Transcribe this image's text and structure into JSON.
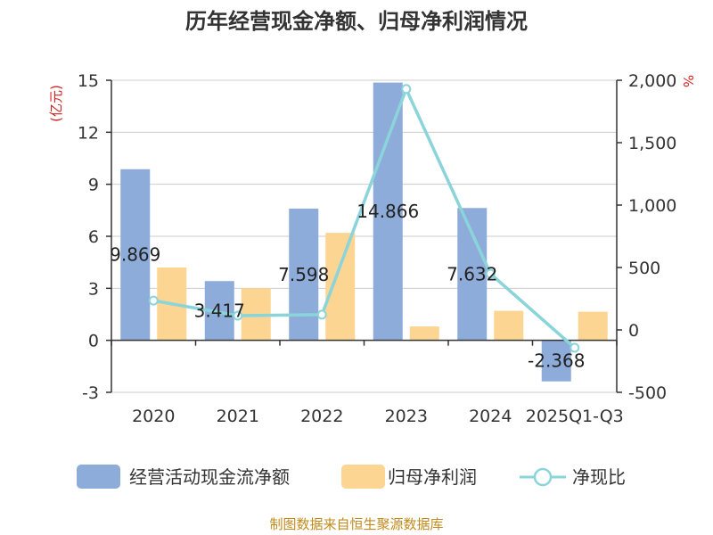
{
  "chart_data": {
    "type": "bar",
    "title": "历年经营现金净额、归母净利润情况",
    "categories": [
      "2020",
      "2021",
      "2022",
      "2023",
      "2024",
      "2025Q1-Q3"
    ],
    "series": [
      {
        "name": "经营活动现金流净额",
        "type": "bar",
        "axis": "left",
        "color": "#8eacd9",
        "values": [
          9.869,
          3.417,
          7.598,
          14.866,
          7.632,
          -2.368
        ]
      },
      {
        "name": "归母净利润",
        "type": "bar",
        "axis": "left",
        "color": "#fdd592",
        "values": [
          4.2,
          3.0,
          6.2,
          0.8,
          1.7,
          1.65
        ]
      },
      {
        "name": "净现比",
        "type": "line",
        "axis": "right",
        "color": "#8ad4da",
        "values": [
          235,
          114,
          122,
          1930,
          450,
          -143
        ]
      }
    ],
    "data_labels": [
      "9.869",
      "3.417",
      "7.598",
      "14.866",
      "7.632",
      "-2.368"
    ],
    "y_left": {
      "label": "(亿元)",
      "min": -3,
      "max": 15,
      "ticks": [
        "-3",
        "0",
        "3",
        "6",
        "9",
        "12",
        "15"
      ]
    },
    "y_right": {
      "label": "%",
      "min": -500,
      "max": 2000,
      "ticks": [
        "-500",
        "0",
        "500",
        "1,000",
        "1,500",
        "2,000"
      ]
    },
    "grid": true,
    "legend": "bottom"
  },
  "legend": [
    {
      "label": "经营活动现金流净额",
      "kind": "bar",
      "color": "#8eacd9"
    },
    {
      "label": "归母净利润",
      "kind": "bar",
      "color": "#fdd592"
    },
    {
      "label": "净现比",
      "kind": "line",
      "color": "#8ad4da"
    }
  ],
  "source": "制图数据来自恒生聚源数据库"
}
